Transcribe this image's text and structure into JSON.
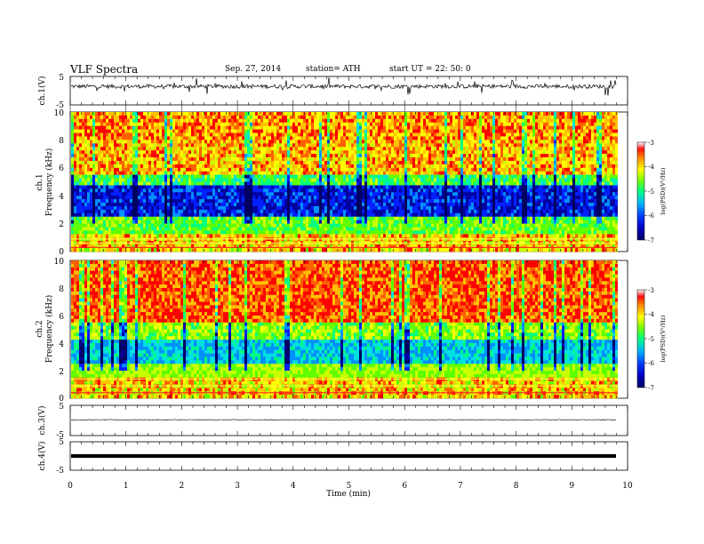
{
  "header": {
    "title": "VLF  Spectra",
    "date": "Sep. 27, 2014",
    "station": "station= ATH",
    "start": "start  UT  =   22: 50: 0"
  },
  "colors": {
    "spectrum": [
      "#000060",
      "#0000a0",
      "#0020ff",
      "#0090ff",
      "#00e0e0",
      "#00ff80",
      "#60ff00",
      "#c8ff00",
      "#ffff00",
      "#ffc000",
      "#ff6000",
      "#ff0000"
    ]
  },
  "chart_data": [
    {
      "type": "line",
      "panel": "ch1-waveform",
      "ylabel": "ch.1(V)",
      "yticks": [
        "5",
        "-5"
      ],
      "ylim": [
        -5,
        5
      ],
      "baseline": 1.5,
      "noise": "high"
    },
    {
      "type": "heatmap",
      "panel": "ch1-spectrogram",
      "ylabel_top": "ch.1",
      "ylabel": "Frequency (kHz)",
      "yticks": [
        "10",
        "8",
        "6",
        "4",
        "2",
        "0"
      ],
      "ylim": [
        0,
        10
      ],
      "colorbar": {
        "label": "log(PSD)(V²/Hz)",
        "ticks": [
          "-3",
          "-4",
          "-5",
          "-6",
          "-7"
        ],
        "range": [
          -7,
          -3
        ]
      },
      "profile": "strong noise at high frequency, dark blue band around 3-4.5 kHz, bright horizontal lines below 1 kHz"
    },
    {
      "type": "heatmap",
      "panel": "ch2-spectrogram",
      "ylabel_top": "ch.2",
      "ylabel": "Frequency (kHz)",
      "yticks": [
        "10",
        "8",
        "6",
        "4",
        "2",
        "0"
      ],
      "ylim": [
        0,
        10
      ],
      "colorbar": {
        "label": "log(PSD)(V²/Hz)",
        "ticks": [
          "-3",
          "-4",
          "-5",
          "-6",
          "-7"
        ],
        "range": [
          -7,
          -3
        ]
      },
      "profile": "very strong (red) noise above 5 kHz, blue band around 3 kHz, horizontal lines below 2 kHz"
    },
    {
      "type": "line",
      "panel": "ch3-waveform",
      "ylabel": "ch.3(V)",
      "yticks": [
        "5",
        "-5"
      ],
      "ylim": [
        -5,
        5
      ],
      "baseline": 0.2,
      "noise": "low"
    },
    {
      "type": "line",
      "panel": "ch4-waveform",
      "ylabel": "ch.4(V)",
      "yticks": [
        "5",
        "-5"
      ],
      "ylim": [
        -5,
        5
      ],
      "baseline": 0,
      "noise": "flat-thick"
    }
  ],
  "xaxis": {
    "label": "Time  (min)",
    "ticks": [
      "0",
      "1",
      "2",
      "3",
      "4",
      "5",
      "6",
      "7",
      "8",
      "9",
      "10"
    ],
    "xlim": [
      0,
      10
    ],
    "data_end": 9.8
  }
}
